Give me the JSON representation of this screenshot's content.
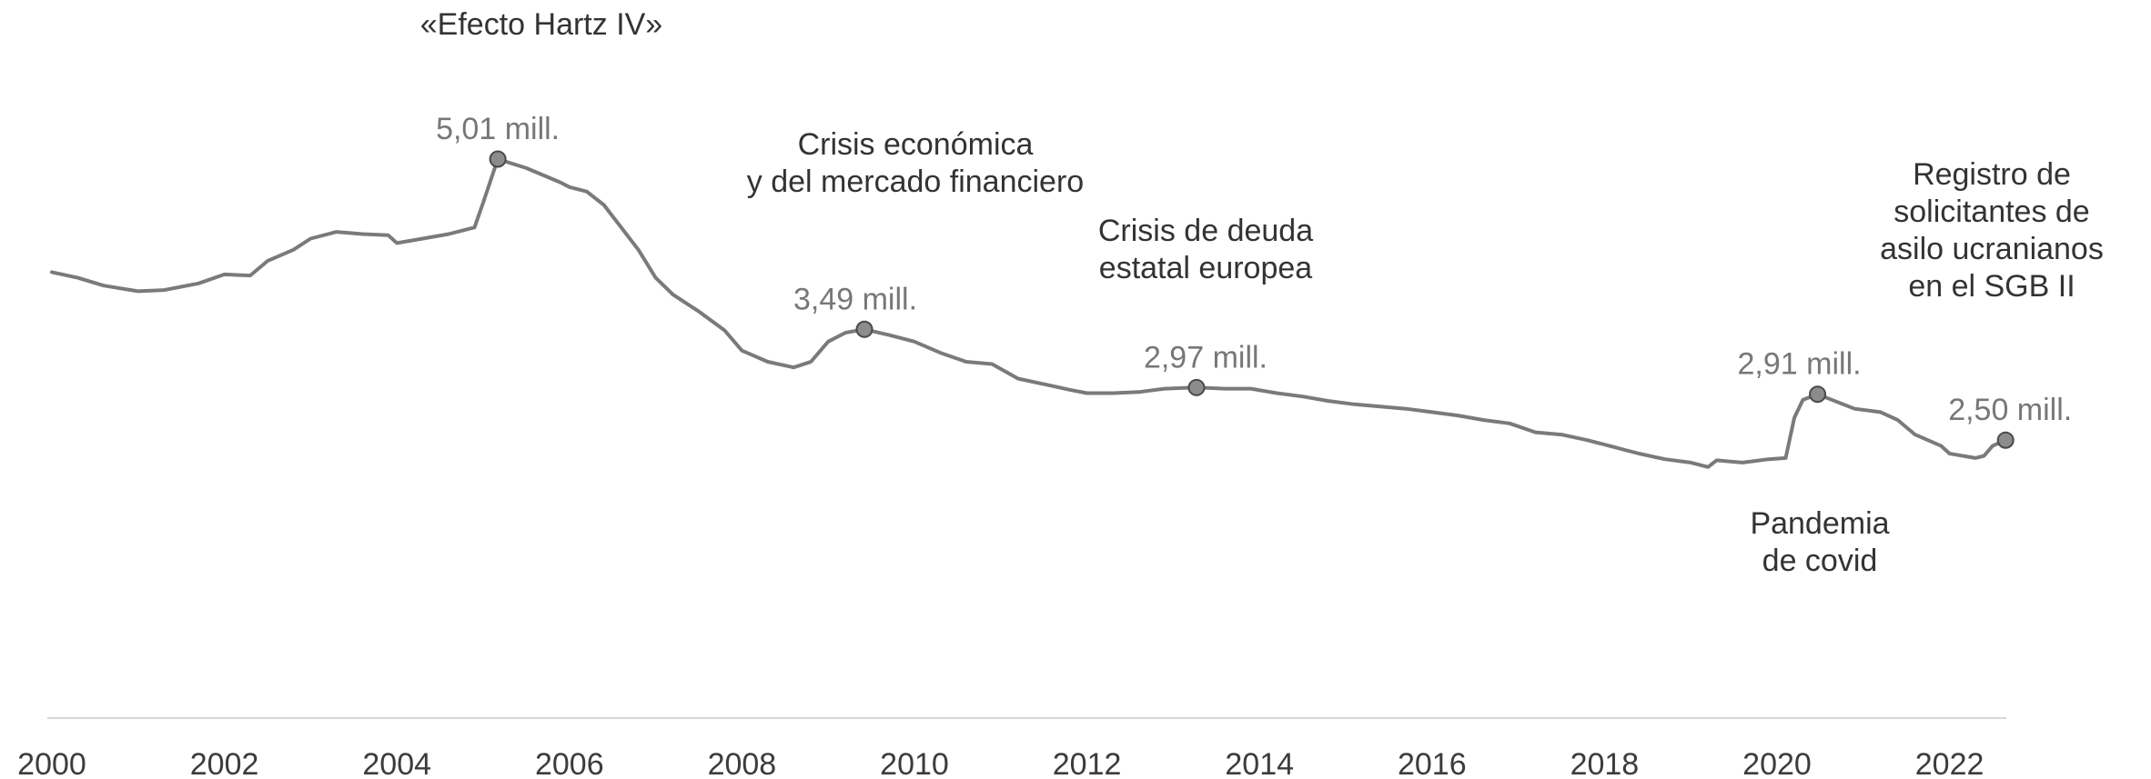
{
  "chart_data": {
    "type": "line",
    "title": "",
    "xlabel": "",
    "ylabel": "",
    "xlim": [
      2000,
      2022.7
    ],
    "ylim": [
      0,
      5.5
    ],
    "grid": false,
    "legend": "none",
    "x_ticks": [
      "2000",
      "2002",
      "2004",
      "2006",
      "2008",
      "2010",
      "2012",
      "2014",
      "2016",
      "2018",
      "2020",
      "2022"
    ],
    "series": [
      {
        "color": "#7a7a7a",
        "points": [
          [
            2000.0,
            4.0
          ],
          [
            2000.3,
            3.95
          ],
          [
            2000.6,
            3.88
          ],
          [
            2001.0,
            3.83
          ],
          [
            2001.3,
            3.84
          ],
          [
            2001.7,
            3.9
          ],
          [
            2002.0,
            3.98
          ],
          [
            2002.3,
            3.97
          ],
          [
            2002.5,
            4.1
          ],
          [
            2002.8,
            4.2
          ],
          [
            2003.0,
            4.3
          ],
          [
            2003.3,
            4.36
          ],
          [
            2003.6,
            4.34
          ],
          [
            2003.9,
            4.33
          ],
          [
            2004.0,
            4.26
          ],
          [
            2004.3,
            4.3
          ],
          [
            2004.6,
            4.34
          ],
          [
            2004.9,
            4.4
          ],
          [
            2005.0,
            4.62
          ],
          [
            2005.17,
            5.01
          ],
          [
            2005.5,
            4.93
          ],
          [
            2005.9,
            4.8
          ],
          [
            2006.0,
            4.76
          ],
          [
            2006.2,
            4.72
          ],
          [
            2006.4,
            4.6
          ],
          [
            2006.6,
            4.4
          ],
          [
            2006.8,
            4.2
          ],
          [
            2007.0,
            3.95
          ],
          [
            2007.2,
            3.8
          ],
          [
            2007.5,
            3.65
          ],
          [
            2007.8,
            3.48
          ],
          [
            2008.0,
            3.3
          ],
          [
            2008.3,
            3.2
          ],
          [
            2008.6,
            3.15
          ],
          [
            2008.8,
            3.2
          ],
          [
            2009.0,
            3.38
          ],
          [
            2009.2,
            3.46
          ],
          [
            2009.42,
            3.49
          ],
          [
            2009.7,
            3.44
          ],
          [
            2010.0,
            3.38
          ],
          [
            2010.3,
            3.28
          ],
          [
            2010.6,
            3.2
          ],
          [
            2010.9,
            3.18
          ],
          [
            2011.2,
            3.05
          ],
          [
            2011.5,
            3.0
          ],
          [
            2011.8,
            2.95
          ],
          [
            2012.0,
            2.92
          ],
          [
            2012.3,
            2.92
          ],
          [
            2012.6,
            2.93
          ],
          [
            2012.9,
            2.96
          ],
          [
            2013.27,
            2.97
          ],
          [
            2013.6,
            2.96
          ],
          [
            2013.9,
            2.96
          ],
          [
            2014.2,
            2.92
          ],
          [
            2014.5,
            2.89
          ],
          [
            2014.8,
            2.85
          ],
          [
            2015.1,
            2.82
          ],
          [
            2015.4,
            2.8
          ],
          [
            2015.7,
            2.78
          ],
          [
            2016.0,
            2.75
          ],
          [
            2016.3,
            2.72
          ],
          [
            2016.6,
            2.68
          ],
          [
            2016.9,
            2.65
          ],
          [
            2017.2,
            2.57
          ],
          [
            2017.5,
            2.55
          ],
          [
            2017.8,
            2.5
          ],
          [
            2018.1,
            2.44
          ],
          [
            2018.4,
            2.38
          ],
          [
            2018.7,
            2.33
          ],
          [
            2019.0,
            2.3
          ],
          [
            2019.2,
            2.26
          ],
          [
            2019.3,
            2.32
          ],
          [
            2019.6,
            2.3
          ],
          [
            2019.9,
            2.33
          ],
          [
            2020.1,
            2.34
          ],
          [
            2020.2,
            2.7
          ],
          [
            2020.3,
            2.86
          ],
          [
            2020.47,
            2.91
          ],
          [
            2020.7,
            2.84
          ],
          [
            2020.9,
            2.78
          ],
          [
            2021.2,
            2.75
          ],
          [
            2021.4,
            2.68
          ],
          [
            2021.6,
            2.55
          ],
          [
            2021.9,
            2.45
          ],
          [
            2022.0,
            2.38
          ],
          [
            2022.3,
            2.34
          ],
          [
            2022.4,
            2.36
          ],
          [
            2022.5,
            2.45
          ],
          [
            2022.65,
            2.5
          ]
        ]
      }
    ],
    "highlights": [
      {
        "x": 2005.17,
        "y": 5.01,
        "label": "5,01 mill."
      },
      {
        "x": 2009.42,
        "y": 3.49,
        "label": "3,49 mill."
      },
      {
        "x": 2013.27,
        "y": 2.97,
        "label": "2,97 mill."
      },
      {
        "x": 2020.47,
        "y": 2.91,
        "label": "2,91 mill."
      },
      {
        "x": 2022.65,
        "y": 2.5,
        "label": "2,50 mill."
      }
    ],
    "annotations": [
      {
        "lines": [
          "«Efecto Hartz IV»"
        ]
      },
      {
        "lines": [
          "Crisis económica",
          "y del mercado financiero"
        ]
      },
      {
        "lines": [
          "Crisis de deuda",
          "estatal europea"
        ]
      },
      {
        "lines": [
          "Registro de",
          "solicitantes de",
          "asilo ucranianos",
          "en el SGB II"
        ]
      },
      {
        "lines": [
          "Pandemia",
          "de covid"
        ]
      }
    ]
  }
}
